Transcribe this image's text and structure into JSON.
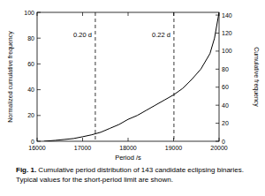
{
  "chart_data": {
    "type": "line",
    "xlabel": "Period /s",
    "ylabel": "Normalized cumulative frequency",
    "y2label": "Cumulative frequency",
    "x": [
      16150,
      16400,
      16600,
      16800,
      17000,
      17200,
      17400,
      17600,
      17800,
      18000,
      18200,
      18400,
      18600,
      18800,
      19000,
      19200,
      19400,
      19600,
      19800,
      19900,
      20000
    ],
    "series": [
      {
        "name": null,
        "color": "#000000",
        "values": [
          0,
          0.7,
          1.4,
          2.1,
          3.5,
          5,
          7,
          10,
          13,
          17,
          20,
          24,
          28,
          32,
          36,
          41,
          48,
          56,
          68,
          80,
          100
        ]
      }
    ],
    "xlim": [
      16000,
      20000
    ],
    "xticks": [
      16000,
      17000,
      18000,
      19000,
      20000
    ],
    "ylim": [
      0,
      100
    ],
    "yticks": [
      0,
      20,
      40,
      60,
      80,
      100
    ],
    "y2lim": [
      0,
      143
    ],
    "y2ticks": [
      0,
      20,
      40,
      60,
      80,
      100,
      120,
      140
    ],
    "annotations": [
      {
        "x": 17280,
        "label": "0.20 d"
      },
      {
        "x": 19008,
        "label": "0.22 d"
      }
    ],
    "caption": {
      "label": "Fig. 1.",
      "text": "Cumulative period distribution of 143 candidate eclipsing binaries. Typical values for the short-period limit are shown."
    }
  }
}
